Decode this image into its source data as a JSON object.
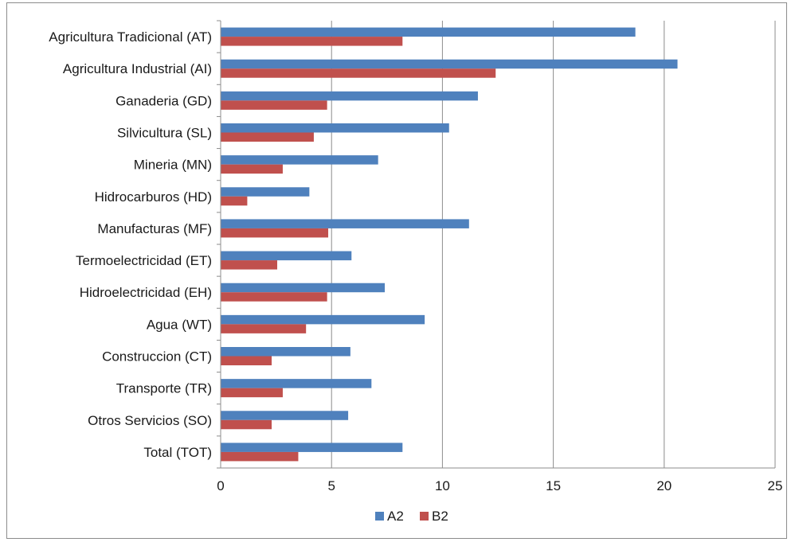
{
  "chart_data": {
    "type": "bar",
    "orientation": "horizontal",
    "categories": [
      "Agricultura Tradicional (AT)",
      "Agricultura Industrial (AI)",
      "Ganaderia (GD)",
      "Silvicultura (SL)",
      "Mineria (MN)",
      "Hidrocarburos (HD)",
      "Manufacturas (MF)",
      "Termoelectricidad (ET)",
      "Hidroelectricidad (EH)",
      "Agua (WT)",
      "Construccion (CT)",
      "Transporte (TR)",
      "Otros Servicios (SO)",
      "Total  (TOT)"
    ],
    "series": [
      {
        "name": "A2",
        "color": "#4f81bd",
        "values": [
          18.7,
          20.6,
          11.6,
          10.3,
          7.1,
          4.0,
          11.2,
          5.9,
          7.4,
          9.2,
          5.85,
          6.8,
          5.75,
          8.2
        ]
      },
      {
        "name": "B2",
        "color": "#c0504d",
        "values": [
          8.2,
          12.4,
          4.8,
          4.2,
          2.8,
          1.2,
          4.85,
          2.55,
          4.8,
          3.85,
          2.3,
          2.8,
          2.3,
          3.5
        ]
      }
    ],
    "xlim": [
      0,
      25
    ],
    "xticks": [
      "0",
      "5",
      "10",
      "15",
      "20",
      "25"
    ],
    "grid": true,
    "legend_position": "bottom"
  }
}
